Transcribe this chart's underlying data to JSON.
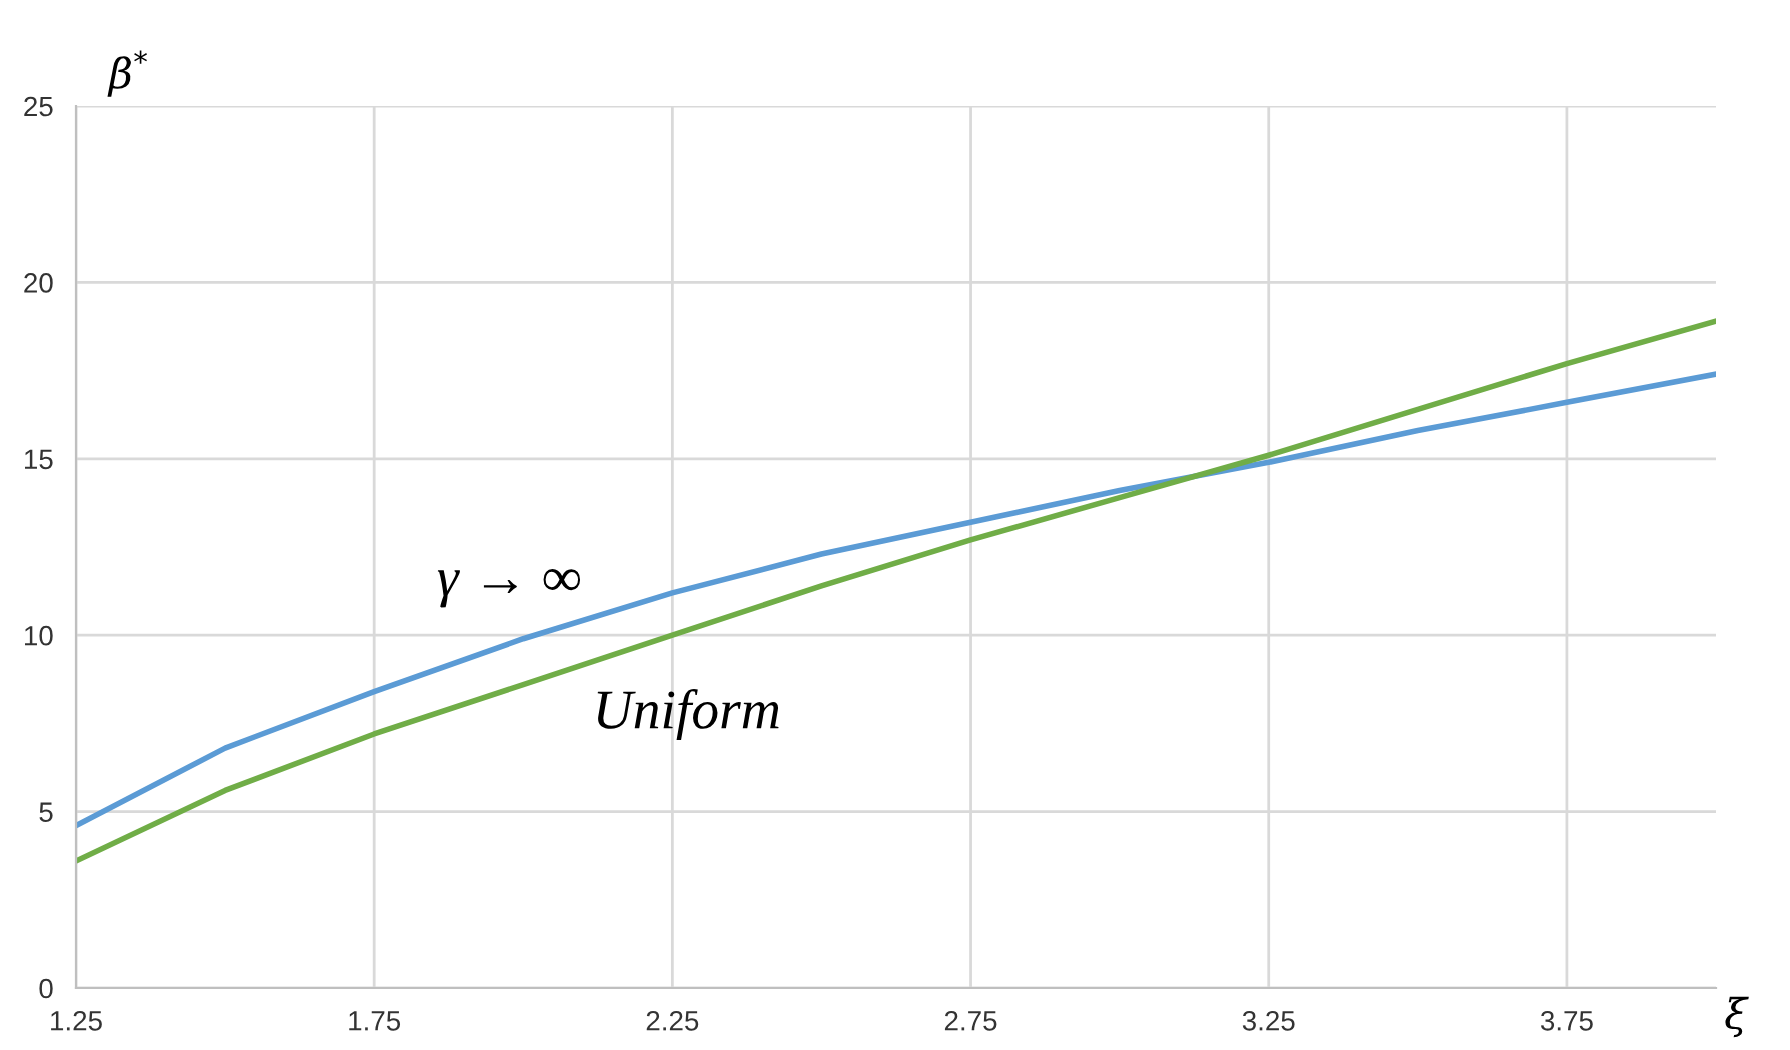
{
  "chart_data": {
    "type": "line",
    "x": [
      1.25,
      1.5,
      1.75,
      2.0,
      2.25,
      2.5,
      2.75,
      3.0,
      3.25,
      3.5,
      3.75,
      4.0
    ],
    "series": [
      {
        "color": "#5b9bd5",
        "values": [
          4.6,
          6.8,
          8.4,
          9.9,
          11.2,
          12.3,
          13.2,
          14.1,
          14.9,
          15.8,
          16.6,
          17.4
        ]
      },
      {
        "color": "#70ad47",
        "values": [
          3.6,
          5.6,
          7.2,
          8.6,
          10.0,
          11.4,
          12.7,
          13.9,
          15.1,
          16.4,
          17.7,
          18.9
        ]
      }
    ],
    "xlabel": "ξ",
    "ylabel": "β$^{*}$",
    "annotations": [
      "γ → ∞",
      "Uniform"
    ],
    "xlim": [
      1.25,
      4.0
    ],
    "ylim": [
      0,
      25
    ],
    "xticks": [
      1.25,
      1.75,
      2.25,
      2.75,
      3.25,
      3.75
    ],
    "yticks": [
      0,
      5,
      10,
      15,
      20,
      25
    ],
    "grid": true,
    "marker": "none",
    "line_style": "solid"
  }
}
